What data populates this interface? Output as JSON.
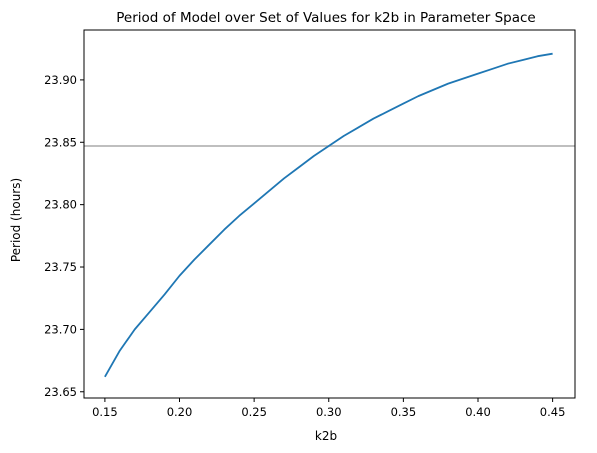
{
  "chart_data": {
    "type": "line",
    "title": "Period of Model over Set of Values for k2b in Parameter Space",
    "xlabel": "k2b",
    "ylabel": "Period (hours)",
    "xlim": [
      0.136,
      0.465
    ],
    "ylim": [
      23.645,
      23.94
    ],
    "xticks": [
      0.15,
      0.2,
      0.25,
      0.3,
      0.35,
      0.4,
      0.45
    ],
    "xtick_labels": [
      "0.15",
      "0.20",
      "0.25",
      "0.30",
      "0.35",
      "0.40",
      "0.45"
    ],
    "yticks": [
      23.65,
      23.7,
      23.75,
      23.8,
      23.85,
      23.9
    ],
    "ytick_labels": [
      "23.65",
      "23.70",
      "23.75",
      "23.80",
      "23.85",
      "23.90"
    ],
    "grid": false,
    "reference_line": {
      "y": 23.847,
      "color": "#aaaaaa"
    },
    "series": [
      {
        "color": "#1f77b4",
        "x": [
          0.15,
          0.16,
          0.17,
          0.18,
          0.19,
          0.2,
          0.21,
          0.22,
          0.23,
          0.24,
          0.25,
          0.26,
          0.27,
          0.28,
          0.29,
          0.3,
          0.31,
          0.32,
          0.33,
          0.34,
          0.35,
          0.36,
          0.37,
          0.38,
          0.39,
          0.4,
          0.41,
          0.42,
          0.43,
          0.44,
          0.45
        ],
        "y": [
          23.662,
          23.683,
          23.7,
          23.714,
          23.728,
          23.743,
          23.756,
          23.768,
          23.78,
          23.791,
          23.801,
          23.811,
          23.821,
          23.83,
          23.839,
          23.847,
          23.855,
          23.862,
          23.869,
          23.875,
          23.881,
          23.887,
          23.892,
          23.897,
          23.901,
          23.905,
          23.909,
          23.913,
          23.916,
          23.919,
          23.921
        ]
      }
    ]
  }
}
